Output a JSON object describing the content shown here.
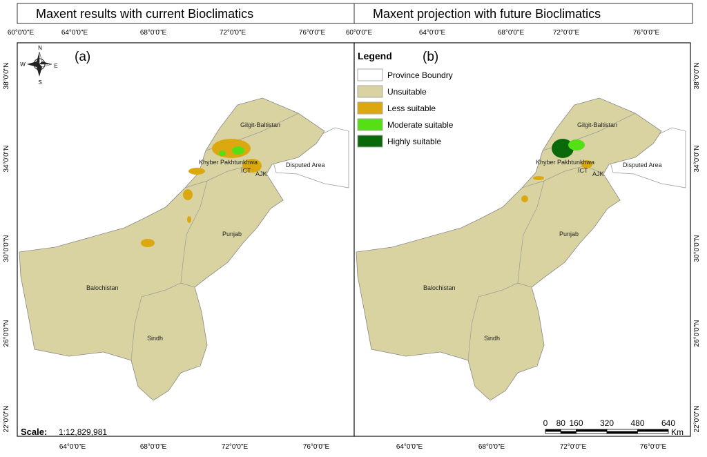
{
  "titles": [
    "Maxent results with current Bioclimatics",
    "Maxent projection with future Bioclimatics"
  ],
  "panels": [
    {
      "label": "(a)",
      "top_ticks": [
        "60°0'0\"E",
        "64°0'0\"E",
        "68°0'0\"E",
        "72°0'0\"E",
        "76°0'0\"E"
      ],
      "bottom_ticks": [
        "64°0'0\"E",
        "68°0'0\"E",
        "72°0'0\"E",
        "76°0'0\"E"
      ],
      "lat_ticks": [
        "38°0'0\"N",
        "34°0'0\"N",
        "30°0'0\"N",
        "26°0'0\"N",
        "22°0'0\"N"
      ],
      "regions": [
        "Gilgit-Baltistan",
        "Khyber Pakhtunkhwa",
        "ICT",
        "AJK",
        "Disputed Area",
        "Punjab",
        "Balochistan",
        "Sindh"
      ]
    },
    {
      "label": "(b)",
      "top_ticks": [
        "60°0'0\"E",
        "64°0'0\"E",
        "68°0'0\"E",
        "72°0'0\"E",
        "76°0'0\"E"
      ],
      "bottom_ticks": [
        "64°0'0\"E",
        "68°0'0\"E",
        "72°0'0\"E",
        "76°0'0\"E"
      ],
      "lat_ticks": [
        "38°0'0\"N",
        "34°0'0\"N",
        "30°0'0\"N",
        "26°0'0\"N",
        "22°0'0\"N"
      ],
      "regions": [
        "Gilgit-Baltistan",
        "Khyber Pakhtunkhwa",
        "ICT",
        "AJK",
        "Disputed Area",
        "Punjab",
        "Balochistan",
        "Sindh"
      ]
    }
  ],
  "compass": {
    "n": "N",
    "s": "S",
    "e": "E",
    "w": "W"
  },
  "legend": {
    "title": "Legend",
    "items": [
      {
        "label": "Province Boundry",
        "color": "#ffffff"
      },
      {
        "label": "Unsuitable",
        "color": "#d8d3a0"
      },
      {
        "label": "Less suitable",
        "color": "#dba810"
      },
      {
        "label": "Moderate suitable",
        "color": "#55e015"
      },
      {
        "label": "Highly suitable",
        "color": "#0a6a0a"
      }
    ]
  },
  "scale": {
    "label": "Scale:",
    "ratio": "1:12,829,981"
  },
  "scalebar": {
    "ticks": [
      0,
      80,
      160,
      320,
      480,
      640
    ],
    "unit": "Km"
  }
}
